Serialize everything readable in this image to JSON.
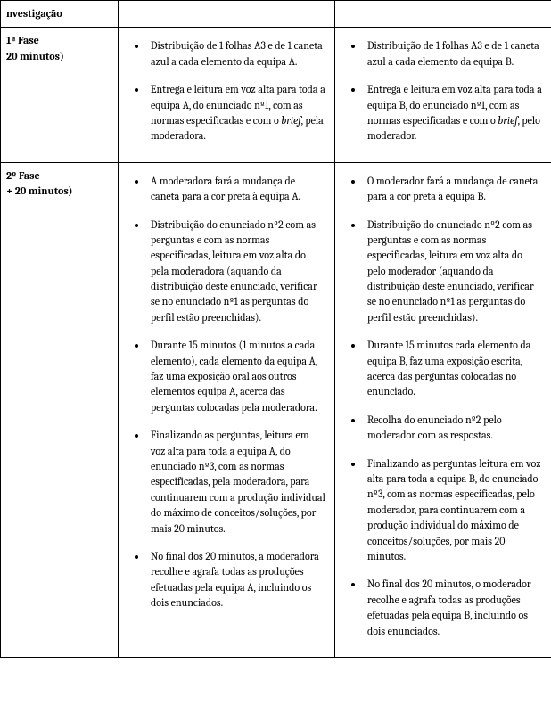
{
  "rows": [
    {
      "label": "nvestigação",
      "colA_items": [],
      "colB_items": []
    },
    {
      "label": "1ª Fase\n20 minutos)",
      "colA_items": [
        "Distribuição de 1 folhas A3 e de 1 caneta azul a cada elemento da equipa A.",
        "Entrega e leitura em voz alta para toda a equipa A, do enunciado nº1, com as normas especificadas e com o |brief|, pela moderadora."
      ],
      "colB_items": [
        "Distribuição de 1 folhas A3 e de 1 caneta azul a cada elemento da equipa B.",
        "Entrega e leitura em voz alta para toda a equipa B, do enunciado nº1, com as normas especificadas e com o |brief|, pelo moderador."
      ]
    },
    {
      "label": "2º Fase\n+ 20 minutos)",
      "colA_items": [
        "A moderadora fará a mudança de caneta para a cor preta à equipa A.",
        "Distribuição do enunciado nº2 com as perguntas e com as normas especificadas, leitura em voz alta do pela moderadora (aquando da distribuição deste enunciado, verificar se no enunciado nº1 as perguntas do perfil estão preenchidas).",
        " Durante 15 minutos (1 minutos a cada elemento), cada elemento da equipa A, faz uma exposição oral aos outros elementos equipa A, acerca das perguntas colocadas pela moderadora.",
        "Finalizando as perguntas, leitura em voz alta para toda a equipa A, do enunciado nº3, com as normas especificadas, pela moderadora, para continuarem com a produção individual do máximo de conceitos/soluções, por mais 20 minutos.",
        "No final dos 20 minutos, a moderadora recolhe e agrafa todas as produções efetuadas pela equipa A, incluindo os dois enunciados."
      ],
      "colB_items": [
        "O moderador fará a mudança de caneta para a cor preta à equipa B.",
        "Distribuição do enunciado nº2 com as perguntas e com as normas especificadas, leitura em voz alta do pelo moderador (aquando da distribuição deste enunciado, verificar se no enunciado nº1 as perguntas do perfil estão preenchidas).",
        "Durante 15 minutos cada elemento da equipa B, faz uma exposição escrita, acerca das perguntas colocadas no enunciado.",
        " Recolha do enunciado nº2 pelo moderador com as respostas.",
        " Finalizando as perguntas leitura em voz alta para toda a equipa B, do enunciado nº3, com as normas especificadas, pelo moderador, para continuarem com a produção individual do máximo de conceitos/soluções, por mais 20 minutos.",
        "No final dos 20 minutos, o moderador recolhe e agrafa todas as produções efetuadas pela equipa B, incluindo os dois enunciados."
      ]
    }
  ]
}
